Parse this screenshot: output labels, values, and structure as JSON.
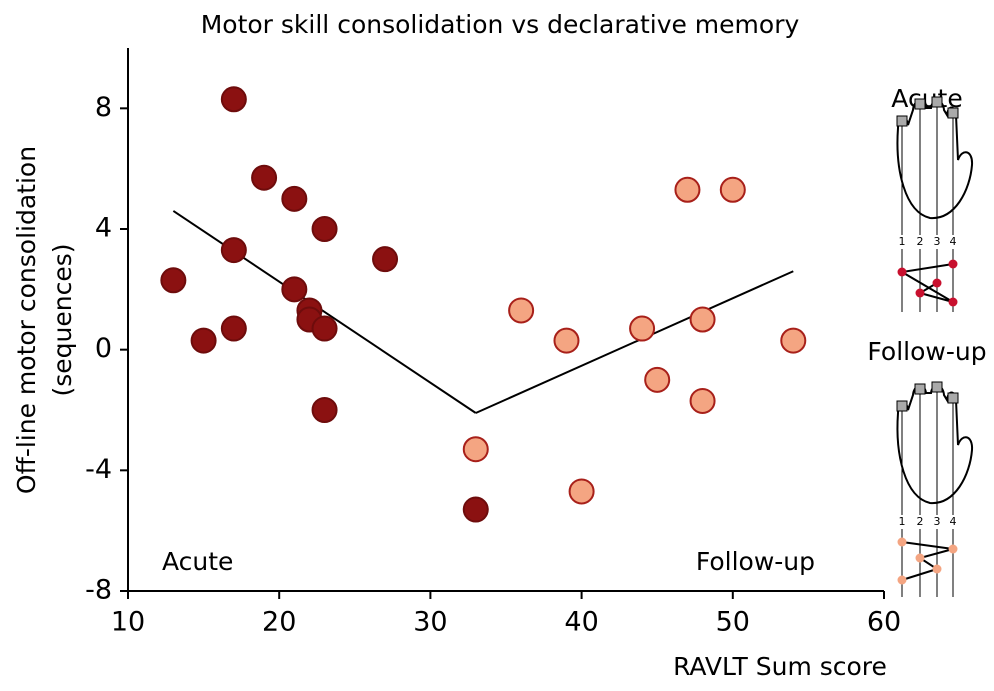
{
  "chart_data": {
    "type": "scatter",
    "title": "Motor skill consolidation vs declarative memory",
    "x_label": "RAVLT Sum score",
    "y_label": [
      "Off-line  motor consolidation",
      "(sequences)"
    ],
    "xlim": [
      10,
      60
    ],
    "xticks": [
      10,
      20,
      30,
      40,
      50,
      60
    ],
    "ylim": [
      -8,
      10
    ],
    "yticks": [
      -8,
      -4,
      0,
      4,
      8
    ],
    "annotations": [
      "Acute",
      "Follow-up"
    ],
    "series": [
      {
        "name": "Acute",
        "color": "#8b1111",
        "edge": "#6e0c0c",
        "x": [
          17,
          19,
          21,
          23,
          17,
          27,
          13,
          21,
          22,
          22,
          23,
          17,
          15,
          23,
          33
        ],
        "values": [
          8.3,
          5.7,
          5.0,
          4.0,
          3.3,
          3.0,
          2.3,
          2.0,
          1.3,
          1.0,
          0.7,
          0.7,
          0.3,
          -2.0,
          -5.3
        ]
      },
      {
        "name": "Follow-up",
        "color": "#f4a582",
        "edge": "#a8201a",
        "x": [
          47,
          50,
          36,
          39,
          44,
          48,
          54,
          45,
          48,
          33,
          40
        ],
        "values": [
          5.3,
          5.3,
          1.3,
          0.3,
          0.7,
          1.0,
          0.3,
          -1.0,
          -1.7,
          -3.3,
          -4.7
        ]
      }
    ],
    "trend_lines": [
      {
        "x": [
          13,
          33
        ],
        "values": [
          4.6,
          -2.1
        ]
      },
      {
        "x": [
          33,
          54
        ],
        "values": [
          -2.1,
          2.6
        ]
      }
    ],
    "panels": [
      {
        "label": "Acute",
        "finger_labels": [
          "1",
          "2",
          "3",
          "4"
        ]
      },
      {
        "label": "Follow-up",
        "finger_labels": [
          "1",
          "2",
          "3",
          "4"
        ]
      }
    ]
  }
}
